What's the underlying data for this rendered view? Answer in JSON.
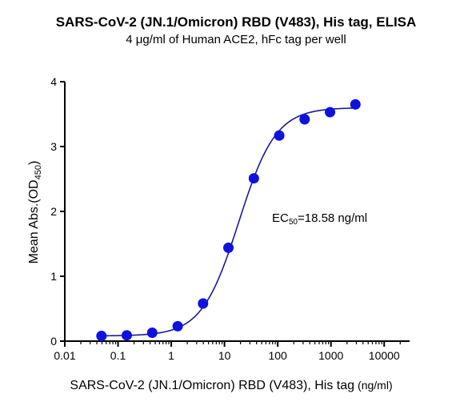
{
  "chart_data": {
    "type": "scatter",
    "title": "SARS-CoV-2 (JN.1/Omicron) RBD (V483), His tag, ELISA",
    "subtitle": "4 μg/ml of Human ACE2, hFc tag per well",
    "xlabel": "SARS-CoV-2 (JN.1/Omicron) RBD (V483), His tag",
    "xlabel_unit": "(ng/ml)",
    "ylabel_main": "Mean Abs.(OD",
    "ylabel_sub": "450",
    "ylabel_end": ")",
    "xscale": "log",
    "xlim": [
      0.01,
      30000
    ],
    "ylim": [
      0,
      4
    ],
    "xticks": [
      0.01,
      0.1,
      1,
      10,
      100,
      1000,
      10000
    ],
    "xtick_labels": [
      "0.01",
      "0.1",
      "1",
      "10",
      "100",
      "1000",
      "10000"
    ],
    "yticks": [
      0,
      1,
      2,
      3,
      4
    ],
    "ytick_labels": [
      "0",
      "1",
      "2",
      "3",
      "4"
    ],
    "grid": false,
    "series": [
      {
        "x": [
          0.0488,
          0.146,
          0.439,
          1.32,
          3.95,
          11.85,
          35.6,
          106.7,
          320,
          960,
          2880
        ],
        "y": [
          0.08,
          0.09,
          0.13,
          0.23,
          0.58,
          1.44,
          2.51,
          3.17,
          3.42,
          3.53,
          3.65
        ],
        "color": "#1010e0"
      }
    ],
    "fit": {
      "model": "4PL",
      "bottom": 0.08,
      "top": 3.6,
      "ec50": 18.58,
      "hill": 1.25,
      "color": "#1a1a9a"
    },
    "annotation": {
      "main": "EC",
      "sub": "50",
      "rest": "=18.58 ng/ml"
    }
  }
}
